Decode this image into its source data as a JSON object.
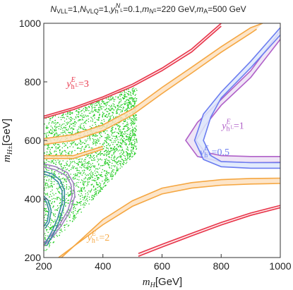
{
  "chart_data": {
    "type": "scatter",
    "title": "N_VLL=1, N_VLQ=1, y_h^{N_L}=0.1, m_{N_1}=220 GeV, m_A=500 GeV",
    "title_parts": {
      "a_sym": "N",
      "a_sub": "VLL",
      "a_val": "=1,",
      "b_sym": "N",
      "b_sub": "VLQ",
      "b_val": "=1,",
      "c_sym": "y",
      "c_sub": "h",
      "c_sup": "N",
      "c_supsub": "L",
      "c_val": "=0.1,",
      "d_sym": "m",
      "d_sub": "N",
      "d_subsub": "1",
      "d_val": "=220 GeV,",
      "e_sym": "m",
      "e_sub": "A",
      "e_val": "=500 GeV"
    },
    "xlabel": "m_H[GeV]",
    "xlabel_parts": {
      "sym": "m",
      "sub": "H",
      "unit": "[GeV]"
    },
    "ylabel": "m_{H±}[GeV]",
    "ylabel_parts": {
      "sym": "m",
      "sub": "H±",
      "unit": "[GeV]"
    },
    "xlim": [
      200,
      1000
    ],
    "ylim": [
      200,
      1000
    ],
    "xticks": [
      200,
      400,
      600,
      800,
      1000
    ],
    "yticks": [
      200,
      400,
      600,
      800,
      1000
    ],
    "grid": false,
    "series": [
      {
        "kind": "scatter-region",
        "color": "#22cc22",
        "x_range": [
          200,
          515
        ],
        "y_lower_at_xmin": 215,
        "y_lower_at_xmax": 560,
        "y_upper_at_xmin": 680,
        "y_upper_at_xmax": 785
      },
      {
        "kind": "band",
        "label": "y_h^{E_L}=3",
        "color": "#e8354a",
        "fill": "#fde4e6",
        "points": [
          [
            200,
            683
          ],
          [
            300,
            712
          ],
          [
            400,
            749
          ],
          [
            500,
            792
          ],
          [
            600,
            847
          ],
          [
            700,
            912
          ],
          [
            800,
            1000
          ]
        ],
        "points_lower": [
          [
            200,
            676
          ],
          [
            300,
            705
          ],
          [
            400,
            742
          ],
          [
            500,
            784
          ],
          [
            600,
            838
          ],
          [
            700,
            902
          ],
          [
            800,
            990
          ]
        ]
      },
      {
        "kind": "band",
        "label": "y_h^{E_L}=3",
        "color": "#e8354a",
        "fill": "#fde4e6",
        "points": [
          [
            520,
            214
          ],
          [
            600,
            245
          ],
          [
            700,
            283
          ],
          [
            800,
            320
          ],
          [
            900,
            352
          ],
          [
            1000,
            378
          ]
        ],
        "points_lower": [
          [
            520,
            204
          ],
          [
            600,
            236
          ],
          [
            700,
            274
          ],
          [
            800,
            311
          ],
          [
            900,
            344
          ],
          [
            1000,
            370
          ]
        ]
      },
      {
        "kind": "band",
        "label": "y_h^{E_L}=2",
        "color": "#f5a742",
        "fill": "#fde0c0",
        "points": [
          [
            200,
            606
          ],
          [
            300,
            620
          ],
          [
            400,
            653
          ],
          [
            500,
            707
          ],
          [
            600,
            781
          ],
          [
            700,
            850
          ],
          [
            800,
            920
          ],
          [
            900,
            985
          ],
          [
            940,
            1000
          ]
        ],
        "points_lower": [
          [
            200,
            586
          ],
          [
            300,
            600
          ],
          [
            400,
            633
          ],
          [
            500,
            687
          ],
          [
            600,
            760
          ],
          [
            700,
            830
          ],
          [
            800,
            901
          ],
          [
            900,
            966
          ],
          [
            920,
            980
          ]
        ]
      },
      {
        "kind": "band",
        "label": "y_h^{E_L}=2",
        "color": "#f5a742",
        "fill": "#fde0c0",
        "points": [
          [
            260,
            200
          ],
          [
            400,
            330
          ],
          [
            500,
            394
          ],
          [
            600,
            437
          ],
          [
            700,
            456
          ],
          [
            800,
            466
          ],
          [
            900,
            470
          ],
          [
            1000,
            471
          ]
        ],
        "points_lower": [
          [
            250,
            200
          ],
          [
            400,
            312
          ],
          [
            500,
            375
          ],
          [
            600,
            417
          ],
          [
            700,
            437
          ],
          [
            800,
            447
          ],
          [
            900,
            451
          ],
          [
            1000,
            453
          ]
        ]
      },
      {
        "kind": "band",
        "label": "y_h^{E_L}=2",
        "color": "#f5a742",
        "fill": "#fde0c0",
        "points": [
          [
            200,
            548
          ],
          [
            300,
            548
          ],
          [
            400,
            580
          ]
        ],
        "points_lower": [
          [
            200,
            538
          ],
          [
            300,
            538
          ],
          [
            400,
            570
          ]
        ]
      },
      {
        "kind": "band",
        "label": "y_h^{E_L}=1",
        "color": "#b060c8",
        "fill": "#ece0f5",
        "points": [
          [
            1000,
            975
          ],
          [
            900,
            838
          ],
          [
            800,
            740
          ],
          [
            720,
            662
          ],
          [
            680,
            600
          ],
          [
            720,
            545
          ],
          [
            800,
            527
          ],
          [
            900,
            524
          ],
          [
            1000,
            525
          ]
        ],
        "points_lower": [
          [
            1000,
            945
          ],
          [
            900,
            815
          ],
          [
            800,
            720
          ],
          [
            745,
            650
          ],
          [
            715,
            600
          ],
          [
            745,
            560
          ],
          [
            800,
            548
          ],
          [
            900,
            545
          ],
          [
            1000,
            545
          ]
        ]
      },
      {
        "kind": "band",
        "label": "y_h^{E_L}=0.5",
        "color": "#6b7cf0",
        "fill": "#dde7fb",
        "points": [
          [
            1000,
            985
          ],
          [
            900,
            870
          ],
          [
            800,
            765
          ],
          [
            740,
            690
          ],
          [
            710,
            600
          ],
          [
            740,
            535
          ],
          [
            800,
            510
          ],
          [
            900,
            505
          ],
          [
            1000,
            505
          ]
        ],
        "points_lower": [
          [
            1000,
            960
          ],
          [
            900,
            848
          ],
          [
            800,
            745
          ],
          [
            765,
            680
          ],
          [
            740,
            600
          ],
          [
            765,
            548
          ],
          [
            800,
            528
          ],
          [
            900,
            524
          ],
          [
            1000,
            524
          ]
        ]
      },
      {
        "kind": "band",
        "color": "#a080c0",
        "fill": "none",
        "points": [
          [
            200,
            520
          ],
          [
            240,
            510
          ],
          [
            280,
            490
          ],
          [
            300,
            455
          ],
          [
            305,
            410
          ],
          [
            290,
            360
          ],
          [
            260,
            310
          ],
          [
            230,
            270
          ],
          [
            200,
            240
          ]
        ],
        "points_lower": [
          [
            200,
            510
          ],
          [
            238,
            500
          ],
          [
            275,
            480
          ],
          [
            292,
            450
          ],
          [
            296,
            410
          ],
          [
            282,
            362
          ],
          [
            255,
            315
          ],
          [
            225,
            276
          ],
          [
            200,
            250
          ]
        ]
      },
      {
        "kind": "band",
        "color": "#3a8aa0",
        "fill": "none",
        "points": [
          [
            200,
            495
          ],
          [
            230,
            485
          ],
          [
            255,
            465
          ],
          [
            270,
            430
          ],
          [
            270,
            385
          ],
          [
            255,
            330
          ],
          [
            235,
            285
          ],
          [
            210,
            240
          ]
        ],
        "points_lower": [
          [
            200,
            485
          ],
          [
            225,
            477
          ],
          [
            248,
            458
          ],
          [
            262,
            428
          ],
          [
            262,
            387
          ],
          [
            247,
            334
          ],
          [
            228,
            290
          ],
          [
            204,
            246
          ]
        ]
      },
      {
        "kind": "band",
        "color": "#3a8aa0",
        "fill": "none",
        "points": [
          [
            200,
            410
          ],
          [
            215,
            395
          ],
          [
            225,
            360
          ],
          [
            218,
            320
          ],
          [
            205,
            300
          ]
        ],
        "points_lower": [
          [
            200,
            402
          ],
          [
            209,
            390
          ],
          [
            218,
            360
          ],
          [
            212,
            323
          ],
          [
            200,
            306
          ]
        ]
      }
    ],
    "annotations": [
      {
        "text_sym": "y",
        "text_sub": "h",
        "text_sup": "E",
        "text_supsub": "L",
        "text_val": "=3",
        "x": 315,
        "y": 783,
        "color": "#e8354a"
      },
      {
        "text_sym": "y",
        "text_sub": "h",
        "text_sup": "E",
        "text_supsub": "L",
        "text_val": "=2",
        "x": 385,
        "y": 258,
        "color": "#f5a742"
      },
      {
        "text_sym": "y",
        "text_sub": "h",
        "text_sup": "E",
        "text_supsub": "L",
        "text_val": "=1",
        "x": 840,
        "y": 640,
        "color": "#b060c8"
      },
      {
        "text_sym": "y",
        "text_sub": "h",
        "text_sup": "E",
        "text_supsub": "L",
        "text_val": "=0.5",
        "x": 778,
        "y": 550,
        "color": "#6b7cf0"
      }
    ]
  }
}
